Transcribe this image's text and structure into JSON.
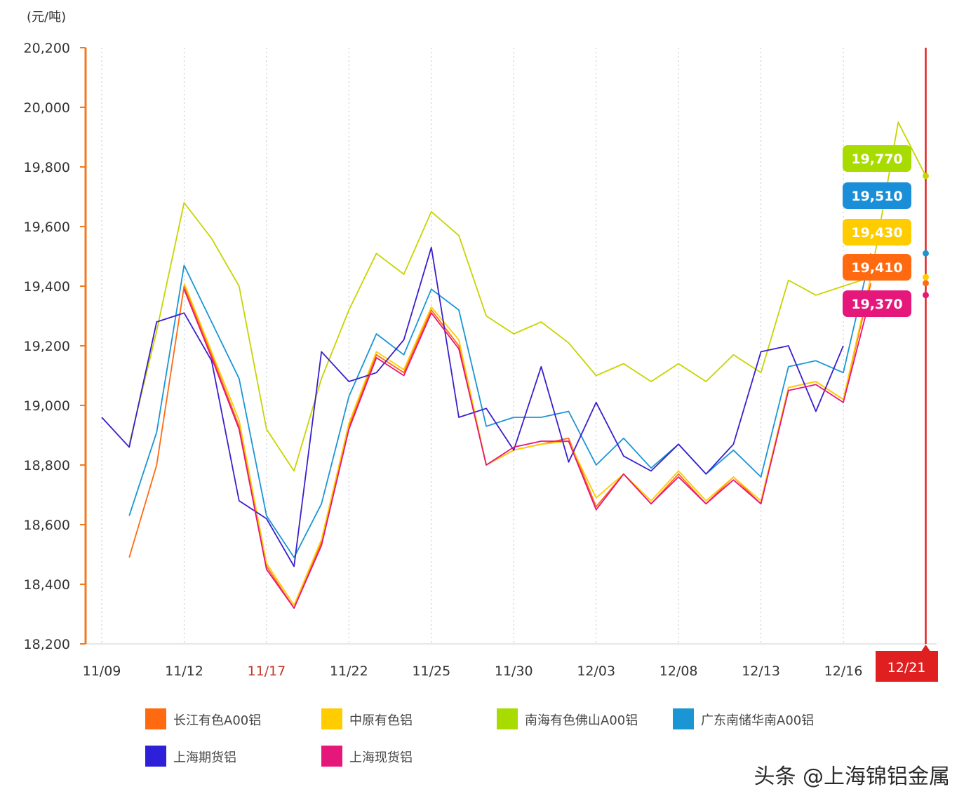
{
  "chart_data": {
    "type": "line",
    "ylabel": "(元/吨)",
    "ylim": [
      18200,
      20200
    ],
    "y_ticks": [
      "20,200",
      "20,000",
      "19,800",
      "19,600",
      "19,400",
      "19,200",
      "19,000",
      "18,800",
      "18,600",
      "18,400",
      "18,200"
    ],
    "x_tick_labels": [
      "11/09",
      "11/12",
      "11/17",
      "11/22",
      "11/25",
      "11/30",
      "12/03",
      "12/08",
      "12/13",
      "12/16"
    ],
    "x_tick_label_colors": [
      "#333333",
      "#333333",
      "#c0392b",
      "#333333",
      "#333333",
      "#333333",
      "#333333",
      "#333333",
      "#333333",
      "#333333"
    ],
    "x_tick_positions": [
      0,
      3,
      6,
      9,
      12,
      15,
      18,
      21,
      24,
      27
    ],
    "x_count": 31,
    "current_marker_label": "12/21",
    "current_marker_color": "#e02020",
    "grid": true,
    "legend_position": "bottom",
    "series": [
      {
        "name": "长江有色A00铝",
        "color": "#ff6a10",
        "values": [
          null,
          18490,
          18800,
          19400,
          19170,
          18930,
          18460,
          18320,
          18540,
          18930,
          19170,
          19110,
          19320,
          19200,
          18800,
          18850,
          18870,
          18890,
          18660,
          18770,
          18670,
          18770,
          18670,
          18760,
          18670,
          19060,
          19080,
          19020,
          19410,
          null,
          19410
        ]
      },
      {
        "name": "中原有色铝",
        "color": "#ffcc00",
        "values": [
          null,
          null,
          null,
          19410,
          19180,
          18950,
          18470,
          18330,
          18550,
          18940,
          19180,
          19120,
          19330,
          19220,
          18800,
          18850,
          18870,
          18880,
          18690,
          18770,
          18680,
          18780,
          18680,
          18760,
          18680,
          19060,
          19080,
          19020,
          19430,
          null,
          19430
        ]
      },
      {
        "name": "南海有色佛山A00铝",
        "color": "#c8d400",
        "values": [
          null,
          18870,
          19250,
          19680,
          19560,
          19400,
          18920,
          18780,
          19090,
          19320,
          19510,
          19440,
          19650,
          19570,
          19300,
          19240,
          19280,
          19210,
          19100,
          19140,
          19080,
          19140,
          19080,
          19170,
          19110,
          19420,
          19370,
          19400,
          19430,
          19950,
          19770
        ]
      },
      {
        "name": "广东南储华南A00铝",
        "color": "#1a96d4",
        "values": [
          null,
          18630,
          18910,
          19470,
          19280,
          19090,
          18630,
          18490,
          18670,
          19030,
          19240,
          19170,
          19390,
          19320,
          18930,
          18960,
          18960,
          18980,
          18800,
          18890,
          18790,
          18870,
          18770,
          18850,
          18760,
          19130,
          19150,
          19110,
          19510,
          null,
          19510
        ]
      },
      {
        "name": "上海期货铝",
        "color": "#3a1fcc",
        "values": [
          18960,
          18860,
          19280,
          19310,
          19150,
          18680,
          18620,
          18460,
          19180,
          19080,
          19110,
          19220,
          19530,
          18960,
          18990,
          18850,
          19130,
          18810,
          19010,
          18830,
          18780,
          18870,
          18770,
          18870,
          19180,
          19200,
          18980,
          19200,
          null,
          null,
          null
        ]
      },
      {
        "name": "上海现货铝",
        "color": "#e6177a",
        "values": [
          null,
          null,
          null,
          19390,
          19160,
          18920,
          18450,
          18320,
          18530,
          18920,
          19160,
          19100,
          19310,
          19190,
          18800,
          18860,
          18880,
          18880,
          18650,
          18770,
          18670,
          18760,
          18670,
          18750,
          18670,
          19050,
          19070,
          19010,
          19370,
          null,
          19370
        ]
      }
    ],
    "end_value_labels": [
      {
        "label": "19,770",
        "color": "#a8dc00"
      },
      {
        "label": "19,510",
        "color": "#1a8fd8"
      },
      {
        "label": "19,430",
        "color": "#ffcc00"
      },
      {
        "label": "19,410",
        "color": "#ff6a10"
      },
      {
        "label": "19,370",
        "color": "#e6177a"
      }
    ],
    "legend": [
      {
        "label": "长江有色A00铝",
        "color": "#ff6a10"
      },
      {
        "label": "中原有色铝",
        "color": "#ffcc00"
      },
      {
        "label": "南海有色佛山A00铝",
        "color": "#a8dc00"
      },
      {
        "label": "广东南储华南A00铝",
        "color": "#1a96d4"
      },
      {
        "label": "上海期货铝",
        "color": "#2e1fd8"
      },
      {
        "label": "上海现货铝",
        "color": "#e6177a"
      }
    ]
  },
  "watermark": "头条 @上海锦铝金属"
}
